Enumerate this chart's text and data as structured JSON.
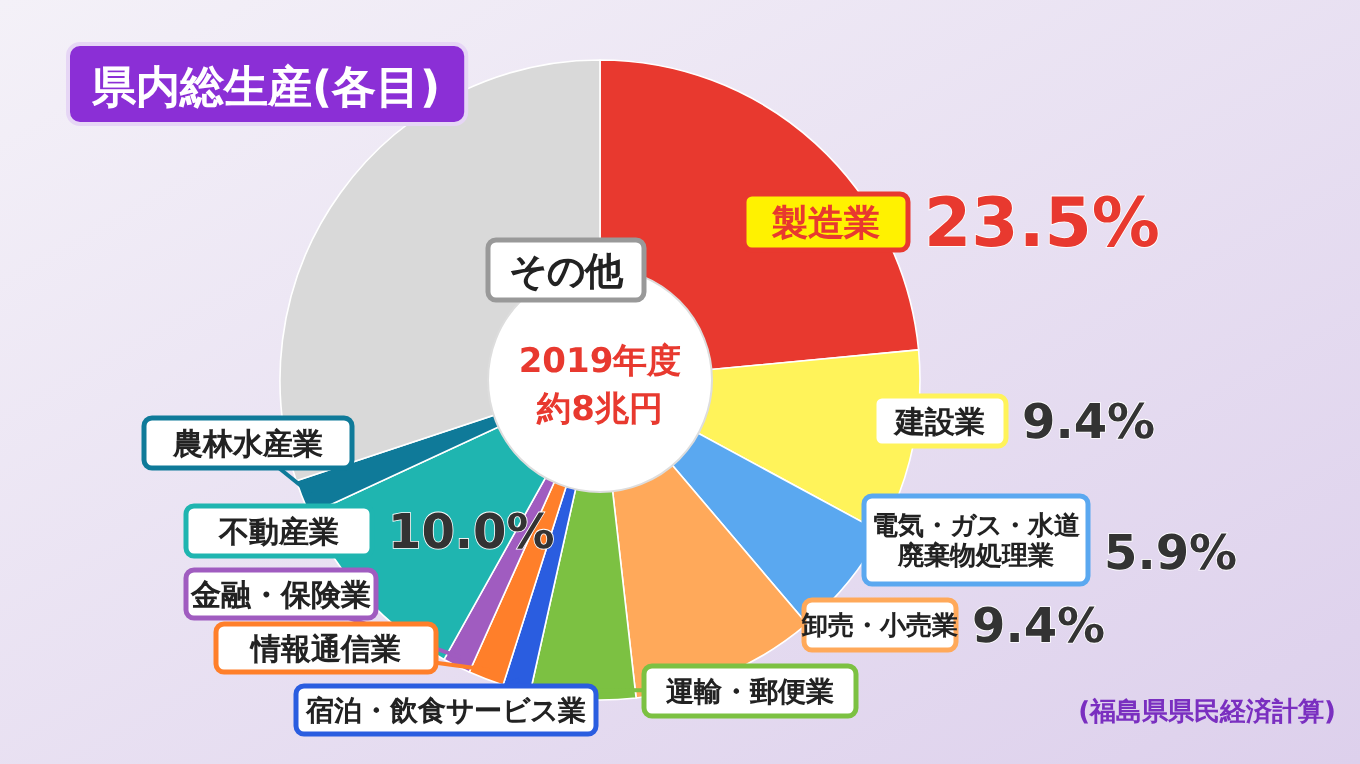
{
  "chart_data": {
    "type": "donut",
    "title": "県内総生産(各目)",
    "categories": [
      "製造業",
      "建設業",
      "電気・ガス・水道廃棄物処理業",
      "卸売・小売業",
      "運輸・郵便業",
      "宿泊・飲食サービス業",
      "情報通信業",
      "金融・保険業",
      "不動産業",
      "農林水産業",
      "その他"
    ],
    "values": [
      23.5,
      9.4,
      5.9,
      9.4,
      5.3,
      1.4,
      1.8,
      1.4,
      10.0,
      1.8,
      30.1
    ],
    "value_labels": [
      "23.5%",
      "9.4%",
      "5.9%",
      "9.4%",
      null,
      null,
      null,
      null,
      "10.0%",
      null,
      null
    ],
    "colors": [
      "#e8392f",
      "#fff35a",
      "#5aa8f0",
      "#ffa95a",
      "#7cc142",
      "#2a5de0",
      "#ff7f2a",
      "#a05cc0",
      "#1fb5b0",
      "#0f7a99",
      "#d9d9d9"
    ],
    "annotations": [
      "2019年度",
      "約8兆円",
      "(福島県県民経済計算)"
    ],
    "legend": false
  }
}
